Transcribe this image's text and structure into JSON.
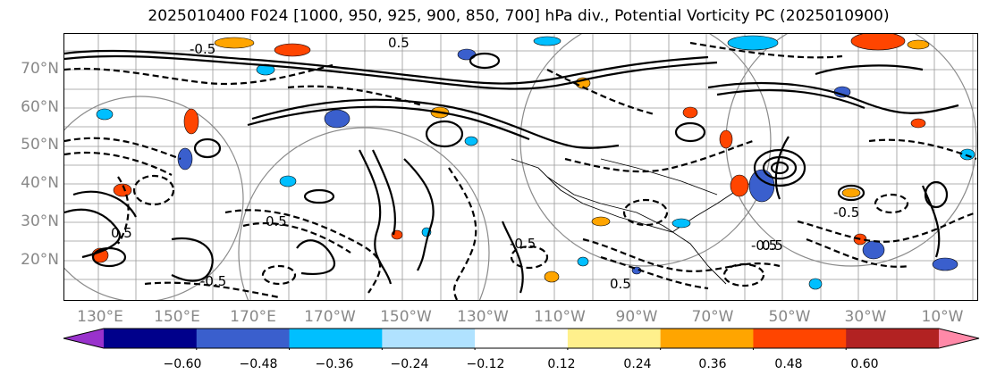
{
  "title": "2025010400 F024 [1000, 950, 925, 900, 850, 700] hPa div., Potential Vorticity PC (2025010900)",
  "lat_labels": [
    "70°N",
    "60°N",
    "50°N",
    "40°N",
    "30°N",
    "20°N"
  ],
  "lon_labels": [
    "130°E",
    "150°E",
    "170°E",
    "170°W",
    "150°W",
    "130°W",
    "110°W",
    "90°W",
    "70°W",
    "50°W",
    "30°W",
    "10°W"
  ],
  "colorbar": {
    "ticks": [
      "−0.60",
      "−0.48",
      "−0.36",
      "−0.24",
      "−0.12",
      "0.12",
      "0.24",
      "0.36",
      "0.48",
      "0.60"
    ],
    "colors": [
      "#9932cc",
      "#00008b",
      "#3a5fcd",
      "#00bfff",
      "#b0e2ff",
      "#ffffff",
      "#fff08c",
      "#ffa500",
      "#ff4500",
      "#b22222",
      "#ff89a8"
    ]
  },
  "contour_labels": [
    "-0.5",
    "0.5",
    "-0.5",
    "0.5",
    "-0.5",
    "0.5",
    "-0.5",
    "0.5",
    "-0.5",
    "0.5"
  ]
}
